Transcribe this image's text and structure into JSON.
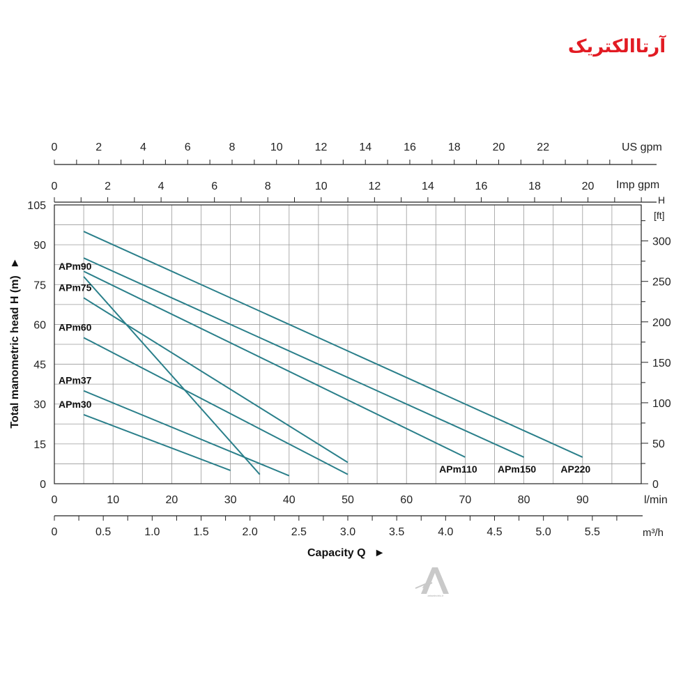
{
  "logo": {
    "text": "آرتاالکتریک",
    "color": "#e21b23"
  },
  "watermark": {
    "text": "artaelectric.ir"
  },
  "chart_data": {
    "type": "line",
    "title": "",
    "line_color": "#2a7f8a",
    "xlabel": "Capacity Q",
    "ylabel": "Total manometric head H (m)",
    "x_unit_label": "l/min",
    "x_secondary_unit_label": "m³/h",
    "top_axis_us_label": "US gpm",
    "top_axis_imp_label": "Imp gpm",
    "right_axis_label_line1": "H",
    "right_axis_label_line2": "[ft]",
    "xlim": [
      0,
      100
    ],
    "ylim": [
      0,
      105
    ],
    "x_ticks_lmin": [
      "0",
      "10",
      "20",
      "30",
      "40",
      "50",
      "60",
      "70",
      "80",
      "90"
    ],
    "x_ticks_m3h": [
      "0",
      "0.5",
      "1.0",
      "1.5",
      "2.0",
      "2.5",
      "3.0",
      "3.5",
      "4.0",
      "4.5",
      "5.0",
      "5.5"
    ],
    "y_ticks_m": [
      "0",
      "15",
      "30",
      "45",
      "60",
      "75",
      "90",
      "105"
    ],
    "y_ticks_ft": [
      "0",
      "50",
      "100",
      "150",
      "200",
      "250",
      "300"
    ],
    "top_ticks_us_gpm": [
      "0",
      "2",
      "4",
      "6",
      "8",
      "10",
      "12",
      "14",
      "16",
      "18",
      "20",
      "22"
    ],
    "top_ticks_imp_gpm": [
      "0",
      "2",
      "4",
      "6",
      "8",
      "10",
      "12",
      "14",
      "16",
      "18",
      "20"
    ],
    "series": [
      {
        "name": "APm30",
        "label_side": "left",
        "points": [
          [
            5,
            26
          ],
          [
            30,
            5
          ]
        ]
      },
      {
        "name": "APm37",
        "label_side": "left",
        "points": [
          [
            5,
            35
          ],
          [
            40,
            3
          ]
        ]
      },
      {
        "name": "APm60",
        "label_side": "left",
        "points": [
          [
            5,
            55
          ],
          [
            50,
            3.5
          ]
        ]
      },
      {
        "name": "APm75",
        "label_side": "left",
        "points": [
          [
            5,
            70
          ],
          [
            50,
            8
          ]
        ]
      },
      {
        "name": "APm90",
        "label_side": "left",
        "points": [
          [
            5,
            78
          ],
          [
            35,
            3.5
          ]
        ]
      },
      {
        "name": "APm110",
        "label_side": "right",
        "points": [
          [
            5,
            80
          ],
          [
            70,
            10
          ]
        ]
      },
      {
        "name": "APm150",
        "label_side": "right",
        "points": [
          [
            5,
            85
          ],
          [
            80,
            10
          ]
        ]
      },
      {
        "name": "AP220",
        "label_side": "right",
        "points": [
          [
            5,
            95
          ],
          [
            90,
            10
          ]
        ]
      }
    ]
  }
}
